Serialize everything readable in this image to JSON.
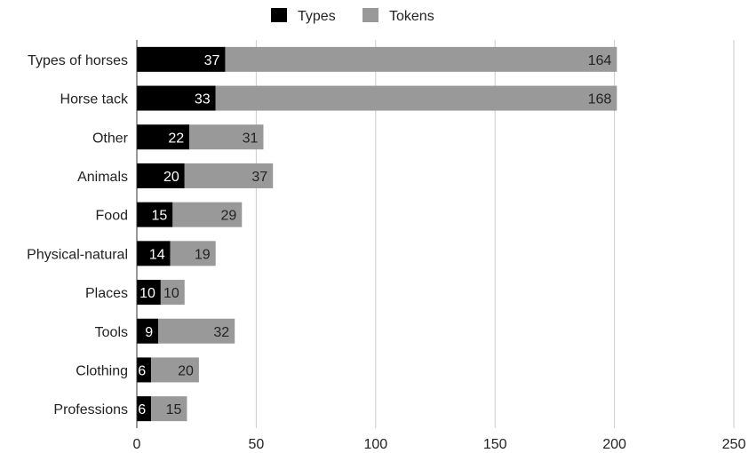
{
  "chart_data": {
    "type": "bar",
    "orientation": "horizontal",
    "stacked": true,
    "categories": [
      "Types of horses",
      "Horse tack",
      "Other",
      "Animals",
      "Food",
      "Physical-natural",
      "Places",
      "Tools",
      "Clothing",
      "Professions"
    ],
    "series": [
      {
        "name": "Types",
        "color": "#000000",
        "values": [
          37,
          33,
          22,
          20,
          15,
          14,
          10,
          9,
          6,
          6
        ]
      },
      {
        "name": "Tokens",
        "color": "#999999",
        "values": [
          164,
          168,
          31,
          37,
          29,
          19,
          10,
          32,
          20,
          15
        ]
      }
    ],
    "xlim": [
      0,
      250
    ],
    "x_ticks": [
      "0",
      "50",
      "100",
      "150",
      "200",
      "250"
    ],
    "grid": "vertical",
    "legend": "top-center",
    "data_labels": true
  }
}
